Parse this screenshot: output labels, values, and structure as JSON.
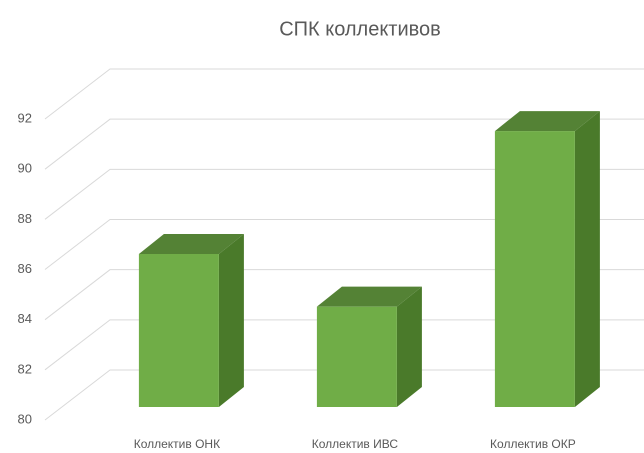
{
  "chart_data": {
    "type": "bar3d",
    "title": "СПК коллективов",
    "categories": [
      "Коллектив ОНК",
      "Коллектив ИВС",
      "Коллектив ОКР"
    ],
    "values": [
      86.1,
      84.0,
      91.0
    ],
    "color": "#70ad47",
    "ylim": [
      80,
      92
    ],
    "yticks": [
      80,
      82,
      84,
      86,
      88,
      90,
      92
    ],
    "grid": true
  }
}
